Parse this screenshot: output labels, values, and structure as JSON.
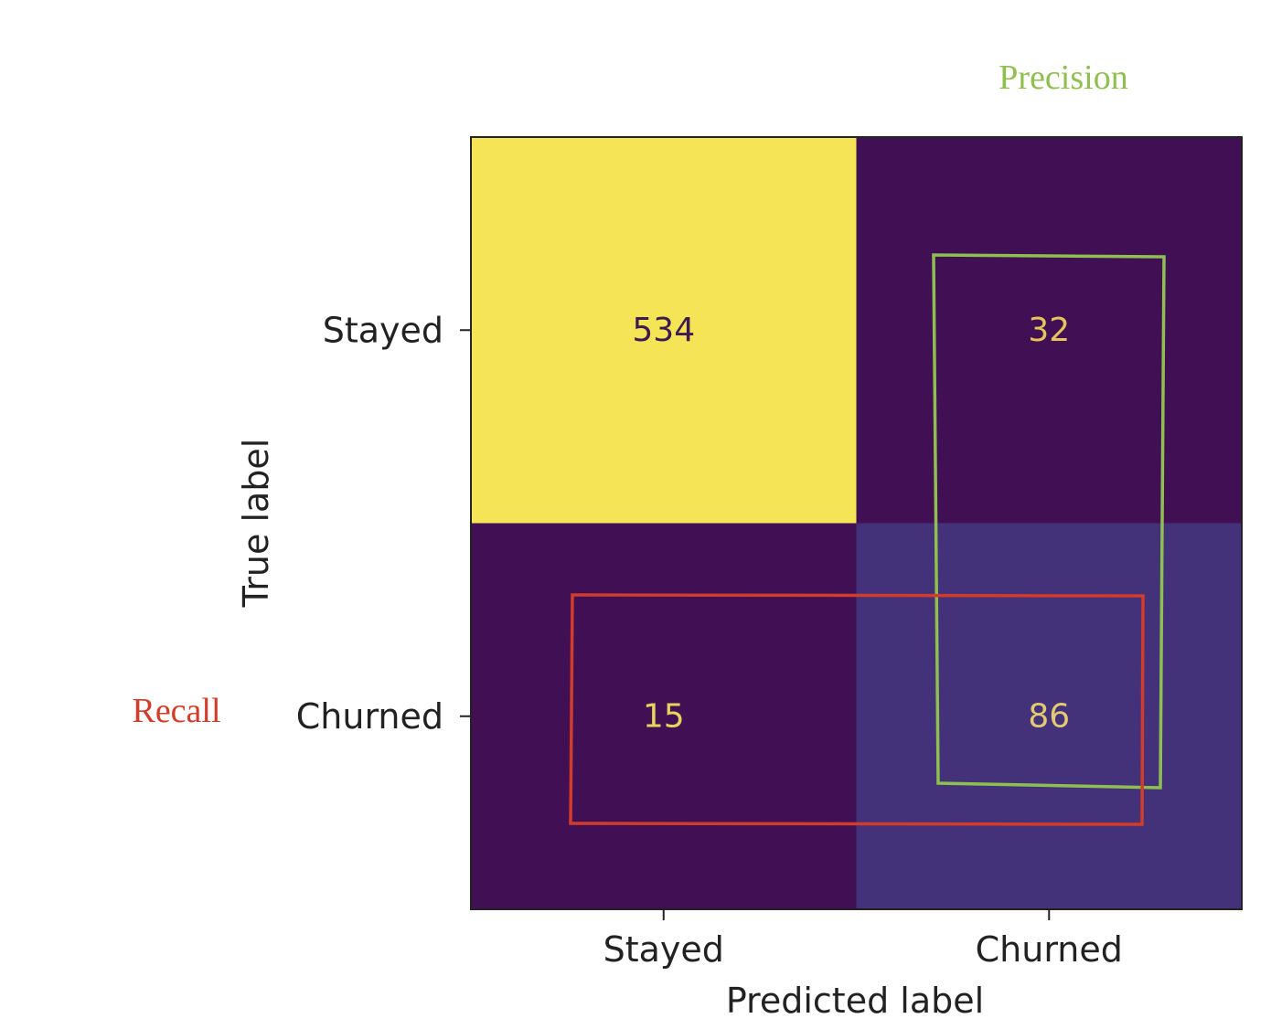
{
  "chart_data": {
    "type": "heatmap",
    "title": "",
    "xlabel": "Predicted label",
    "ylabel": "True label",
    "x_categories": [
      "Stayed",
      "Churned"
    ],
    "y_categories": [
      "Stayed",
      "Churned"
    ],
    "values": [
      [
        534,
        32
      ],
      [
        15,
        86
      ]
    ],
    "colormap": "viridis",
    "cell_colors": [
      [
        "#f5e455",
        "#411054"
      ],
      [
        "#411054",
        "#433179"
      ]
    ],
    "cell_text_colors": [
      [
        "#3d1a52",
        "#e6c45a"
      ],
      [
        "#e6d45c",
        "#e2c972"
      ]
    ],
    "annotations": [
      {
        "text": "Precision",
        "color": "#8fbf4f",
        "outlines": "predicted Churned column"
      },
      {
        "text": "Recall",
        "color": "#d23c2a",
        "outlines": "true Churned row"
      }
    ]
  }
}
